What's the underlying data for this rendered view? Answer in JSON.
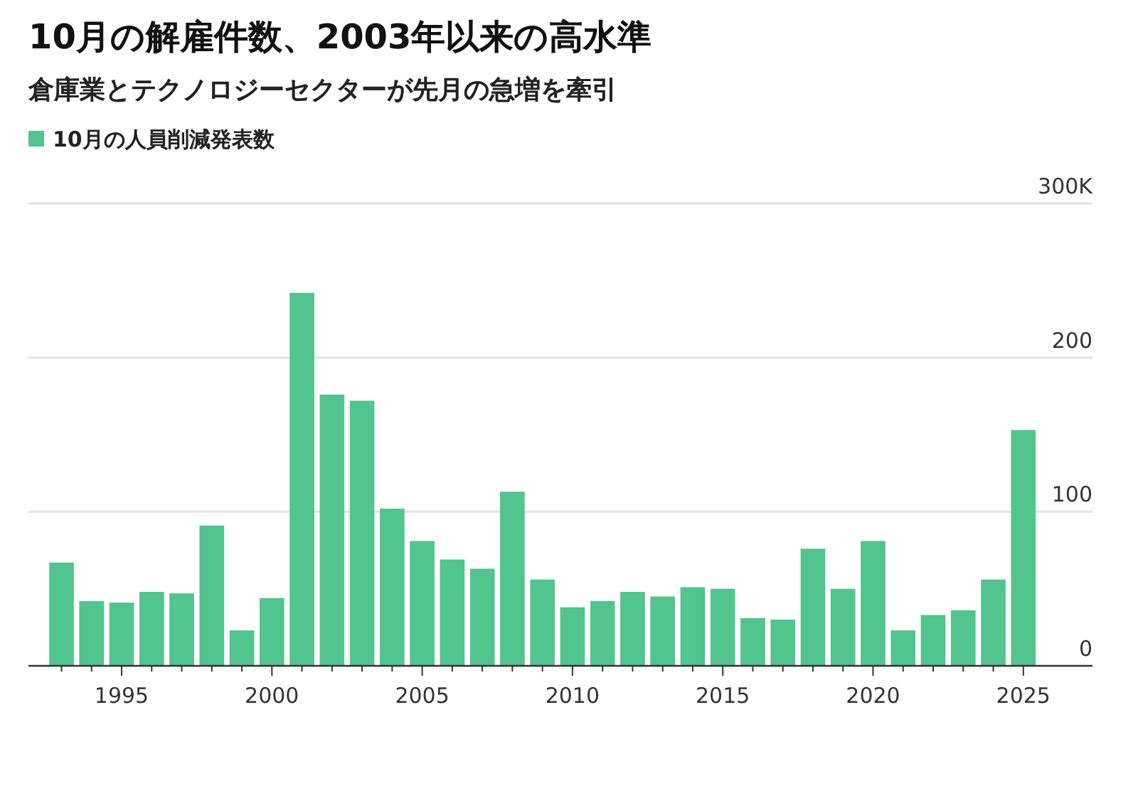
{
  "chart_data": {
    "type": "bar",
    "title": "10月の解雇件数、2003年以来の高水準",
    "subtitle": "倉庫業とテクノロジーセクターが先月の急増を牽引",
    "x": [
      1993,
      1994,
      1995,
      1996,
      1997,
      1998,
      1999,
      2000,
      2001,
      2002,
      2003,
      2004,
      2005,
      2006,
      2007,
      2008,
      2009,
      2010,
      2011,
      2012,
      2013,
      2014,
      2015,
      2016,
      2017,
      2018,
      2019,
      2020,
      2021,
      2022,
      2023,
      2024,
      2025
    ],
    "series": [
      {
        "name": "10月の人員削減発表数",
        "color": "#52c48d",
        "values": [
          67,
          42,
          41,
          48,
          47,
          91,
          23,
          44,
          242,
          176,
          172,
          102,
          81,
          69,
          63,
          113,
          56,
          38,
          42,
          48,
          45,
          51,
          50,
          31,
          30,
          76,
          50,
          81,
          23,
          33,
          36,
          56,
          153
        ]
      }
    ],
    "xlim": [
      1991.9,
      2027.3
    ],
    "xticks": [
      {
        "value": 1993,
        "label": null
      },
      {
        "value": 1994,
        "label": null
      },
      1995,
      {
        "value": 1996,
        "label": null
      },
      {
        "value": 1997,
        "label": null
      },
      {
        "value": 1998,
        "label": null
      },
      {
        "value": 1999,
        "label": null
      },
      2000,
      {
        "value": 2001,
        "label": null
      },
      {
        "value": 2002,
        "label": null
      },
      {
        "value": 2003,
        "label": null
      },
      {
        "value": 2004,
        "label": null
      },
      2005,
      {
        "value": 2006,
        "label": null
      },
      {
        "value": 2007,
        "label": null
      },
      {
        "value": 2008,
        "label": null
      },
      {
        "value": 2009,
        "label": null
      },
      2010,
      {
        "value": 2011,
        "label": null
      },
      {
        "value": 2012,
        "label": null
      },
      {
        "value": 2013,
        "label": null
      },
      {
        "value": 2014,
        "label": null
      },
      2015,
      {
        "value": 2016,
        "label": null
      },
      {
        "value": 2017,
        "label": null
      },
      {
        "value": 2018,
        "label": null
      },
      {
        "value": 2019,
        "label": null
      },
      2020,
      {
        "value": 2021,
        "label": null
      },
      {
        "value": 2022,
        "label": null
      },
      {
        "value": 2023,
        "label": null
      },
      {
        "value": 2024,
        "label": null
      },
      2025
    ],
    "ylim": [
      0,
      300
    ],
    "yticks": [
      0,
      100,
      200,
      {
        "value": 300,
        "label": "300K"
      }
    ],
    "grid": "y",
    "legend": "top left"
  }
}
